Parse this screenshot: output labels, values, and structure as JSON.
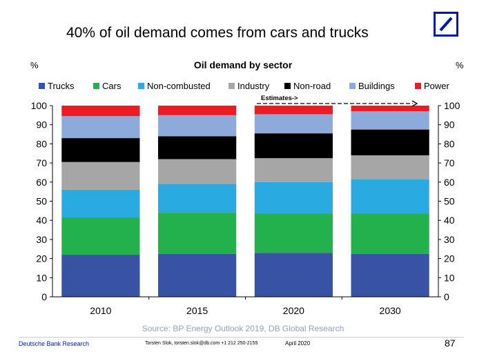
{
  "slide": {
    "title": "40% of oil demand comes from cars and trucks",
    "page_number": "87",
    "footer_left": "Deutsche Bank Research",
    "footer_contact": "Torsten Slok, torsten.slok@db.com  +1 212 250-2155",
    "footer_date": "April 2020",
    "source": "Source: BP Energy Outlook 2019, DB Global Research",
    "logo": "deutsche-bank-logo",
    "brand_color": "#0018a8"
  },
  "chart_data": {
    "type": "bar",
    "stacked": true,
    "title": "Oil demand by sector",
    "ylabel_left": "%",
    "ylabel_right": "%",
    "ylim": [
      0,
      100
    ],
    "yticks": [
      0,
      10,
      20,
      30,
      40,
      50,
      60,
      70,
      80,
      90,
      100
    ],
    "categories": [
      "2010",
      "2015",
      "2020",
      "2030"
    ],
    "annotation": "Estimates->",
    "legend_position": "top",
    "grid": false,
    "series": [
      {
        "name": "Trucks",
        "color": "#3953a4",
        "values": [
          22,
          22.5,
          23,
          22.5
        ]
      },
      {
        "name": "Cars",
        "color": "#22b14c",
        "values": [
          19.5,
          21.5,
          20.5,
          21
        ]
      },
      {
        "name": "Non-combusted",
        "color": "#29abe2",
        "values": [
          14.5,
          15,
          16.5,
          18
        ]
      },
      {
        "name": "Industry",
        "color": "#a6a6a6",
        "values": [
          14.5,
          13,
          12.5,
          12.5
        ]
      },
      {
        "name": "Non-road",
        "color": "#000000",
        "values": [
          12.5,
          12,
          13,
          13.5
        ]
      },
      {
        "name": "Buildings",
        "color": "#8eaadb",
        "values": [
          11.5,
          11,
          10,
          9.5
        ]
      },
      {
        "name": "Power",
        "color": "#ec1c24",
        "values": [
          5.5,
          5,
          4.5,
          3
        ]
      }
    ]
  }
}
